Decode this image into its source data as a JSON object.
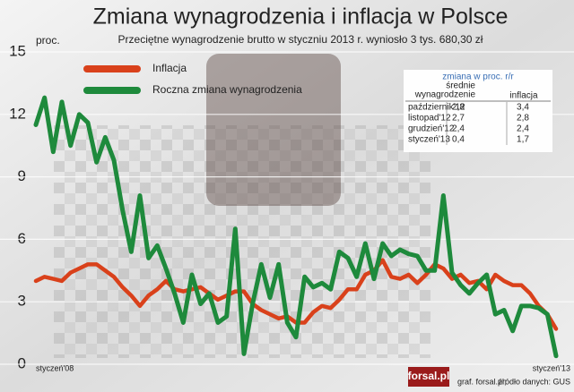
{
  "chart_data": {
    "type": "line",
    "title": "Zmiana wynagrodzenia i inflacja w Polsce",
    "subtitle": "Przeciętne wynagrodzenie brutto w styczniu 2013 r. wyniosło 3 tys. 680,30 zł",
    "y_label": "proc.",
    "categories": [
      "styczeń'08",
      null,
      null,
      null,
      null,
      null,
      null,
      null,
      null,
      null,
      null,
      null,
      null,
      null,
      null,
      null,
      null,
      null,
      null,
      null,
      null,
      null,
      null,
      null,
      null,
      null,
      null,
      null,
      null,
      null,
      null,
      null,
      null,
      null,
      null,
      null,
      null,
      null,
      null,
      null,
      null,
      null,
      null,
      null,
      null,
      null,
      null,
      null,
      null,
      null,
      null,
      null,
      null,
      null,
      null,
      null,
      null,
      null,
      null,
      null,
      "styczeń'13"
    ],
    "series": [
      {
        "name": "Inflacja",
        "color": "#d9411b",
        "values": [
          4.0,
          4.2,
          4.1,
          4.0,
          4.4,
          4.6,
          4.8,
          4.8,
          4.5,
          4.2,
          3.7,
          3.3,
          2.8,
          3.3,
          3.6,
          4.0,
          3.6,
          3.5,
          3.6,
          3.7,
          3.4,
          3.1,
          3.3,
          3.5,
          3.5,
          2.9,
          2.6,
          2.4,
          2.2,
          2.3,
          2.0,
          2.0,
          2.5,
          2.8,
          2.7,
          3.1,
          3.6,
          3.6,
          4.3,
          4.5,
          5.0,
          4.2,
          4.1,
          4.3,
          3.9,
          4.3,
          4.8,
          4.6,
          4.1,
          4.3,
          3.9,
          4.0,
          3.6,
          4.3,
          4.0,
          3.8,
          3.8,
          3.4,
          2.8,
          2.4,
          1.7
        ]
      },
      {
        "name": "Roczna zmiana wynagrodzenia",
        "color": "#1e8a3c",
        "values": [
          11.5,
          12.8,
          10.2,
          12.6,
          10.5,
          12.0,
          11.6,
          9.7,
          10.9,
          9.8,
          7.4,
          5.4,
          8.1,
          5.1,
          5.7,
          4.6,
          3.4,
          2.0,
          4.3,
          2.9,
          3.4,
          2.0,
          2.3,
          6.5,
          0.5,
          2.9,
          4.8,
          3.2,
          4.8,
          2.0,
          1.3,
          4.2,
          3.7,
          3.9,
          3.6,
          5.4,
          5.1,
          4.2,
          5.8,
          4.1,
          5.8,
          5.2,
          5.5,
          5.3,
          5.2,
          4.5,
          4.5,
          8.1,
          4.4,
          3.8,
          3.4,
          3.9,
          4.3,
          2.4,
          2.6,
          1.6,
          2.8,
          2.8,
          2.7,
          2.4,
          0.4
        ]
      }
    ],
    "ylim": [
      0,
      15
    ],
    "yticks": [
      0,
      3,
      6,
      9,
      12,
      15
    ],
    "grid": true,
    "inset_table": {
      "title": "zmiana w proc. r/r",
      "columns": [
        [
          "średnie",
          "wynagrodzenie"
        ],
        [
          "inflacja"
        ]
      ],
      "rows": [
        [
          "październik'12",
          "2,8",
          "3,4"
        ],
        [
          "listopad'12",
          "2,7",
          "2,8"
        ],
        [
          "grudzień'12",
          "2,4",
          "2,4"
        ],
        [
          "styczeń'13",
          "0,4",
          "1,7"
        ]
      ]
    },
    "logo": "forsal.pl",
    "credit": "graf. forsal.pl;",
    "source": "źródło danych: GUS"
  }
}
